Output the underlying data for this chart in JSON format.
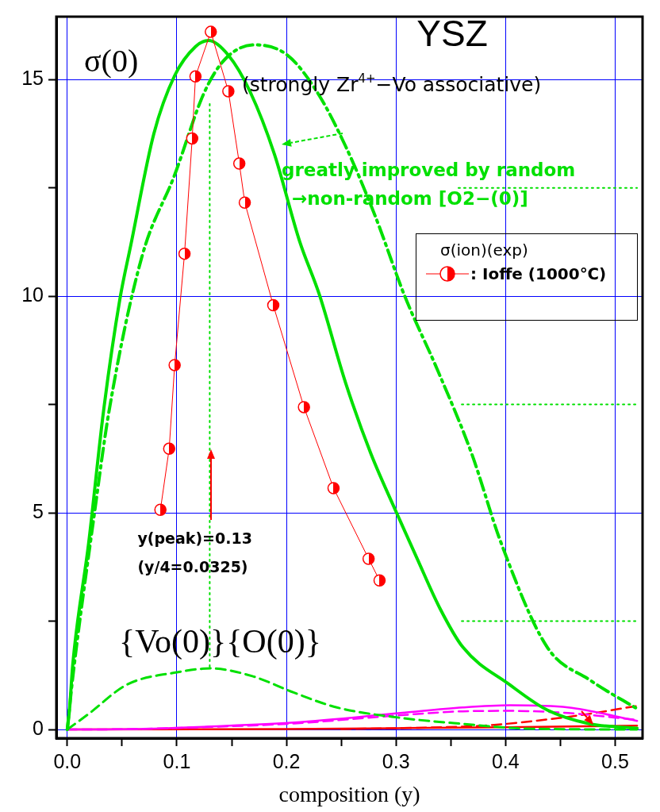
{
  "chart_data": {
    "type": "line",
    "xlabel": "composition (y)",
    "xlim": [
      -0.01,
      0.525
    ],
    "xticks": [
      {
        "value": 0,
        "label": "0.0"
      },
      {
        "value": 0.05,
        "label": null
      },
      0.1,
      {
        "value": 0.15,
        "label": null
      },
      0.2,
      {
        "value": 0.25,
        "label": null
      },
      0.3,
      {
        "value": 0.35,
        "label": null
      },
      0.4,
      {
        "value": 0.45,
        "label": null
      },
      0.5
    ],
    "ylim": [
      -0.2,
      16.45
    ],
    "yticks": [
      0,
      {
        "value": 2.5,
        "label": null
      },
      5,
      {
        "value": 7.5,
        "label": null
      },
      10,
      {
        "value": 12.5,
        "label": null
      },
      15
    ],
    "grid": true,
    "legend": "top right",
    "legend_title": "σ(ion)(exp)",
    "annotations": [
      "YSZ",
      "σ(0)",
      "(strongly Zr$^{4+}$−Vo associative)",
      "greatly improved by random\n→non-random [O2−(0)]",
      {
        "text": "y(peak)=0.13\n(y/4=0.0325)",
        "x": 0.13,
        "y": 6.37
      },
      "{Vo(0)}{O(0)}"
    ],
    "series": [
      {
        "name": ": Ioffe (1000℃)",
        "color": "#ff0000",
        "marker": "circle",
        "line_style": "solid",
        "x": [
          0.085,
          0.093,
          0.098,
          0.107,
          0.114,
          0.117,
          0.131,
          0.147,
          0.157,
          0.162,
          0.188,
          0.216,
          0.243,
          0.275,
          0.285
        ],
        "values": [
          5.07,
          6.48,
          8.41,
          10.98,
          13.64,
          15.07,
          16.1,
          14.73,
          13.06,
          12.16,
          9.79,
          7.44,
          5.57,
          3.94,
          3.44
        ]
      },
      {
        "color": "#00e000",
        "marker": "none",
        "line_style": "solid",
        "x": [
          0,
          0.002,
          0.005,
          0.0195,
          0.033,
          0.048,
          0.058,
          0.079,
          0.098,
          0.117,
          0.129,
          0.147,
          0.167,
          0.189,
          0.212,
          0.23,
          0.254,
          0.277,
          0.3,
          0.319,
          0.34,
          0.361,
          0.404,
          0.438,
          0.477,
          0.52
        ],
        "values": [
          0,
          0.45,
          1.5,
          4.3,
          7.33,
          9.93,
          11.18,
          13.75,
          15.09,
          15.76,
          15.9,
          15.56,
          14.71,
          13.28,
          11.27,
          10.04,
          8.0,
          6.37,
          5.03,
          3.96,
          2.8,
          1.9,
          1.03,
          0.45,
          0.13,
          0.03
        ]
      },
      {
        "color": "#00e000",
        "marker": "none",
        "line_style": "dashdot",
        "x": [
          0,
          0.005,
          0.025,
          0.038,
          0.068,
          0.098,
          0.125,
          0.144,
          0.171,
          0.201,
          0.228,
          0.254,
          0.281,
          0.308,
          0.338,
          0.369,
          0.396,
          0.438,
          0.477,
          0.522
        ],
        "values": [
          0,
          1.2,
          5.03,
          7.33,
          10.9,
          12.8,
          14.7,
          15.47,
          15.8,
          15.56,
          14.71,
          13.46,
          11.85,
          10.0,
          8.29,
          6.37,
          4.3,
          1.9,
          1.14,
          0.45
        ]
      },
      {
        "color": "#00e000",
        "marker": "none",
        "line_style": "dashed",
        "x": [
          0,
          0.02,
          0.054,
          0.1,
          0.131,
          0.169,
          0.207,
          0.246,
          0.304,
          0.361,
          0.419,
          0.52
        ],
        "values": [
          0,
          0.37,
          1.03,
          1.32,
          1.41,
          1.23,
          0.85,
          0.51,
          0.27,
          0.13,
          0.02,
          0
        ]
      },
      {
        "color": "#ff00ff",
        "marker": "none",
        "line_style": "solid",
        "x": [
          0,
          0.06,
          0.131,
          0.207,
          0.304,
          0.361,
          0.404,
          0.457,
          0.52
        ],
        "values": [
          0,
          0.01,
          0.07,
          0.16,
          0.38,
          0.51,
          0.56,
          0.51,
          0.2
        ]
      },
      {
        "color": "#ff00ff",
        "marker": "none",
        "line_style": "dashed",
        "x": [
          0,
          0.06,
          0.131,
          0.207,
          0.304,
          0.361,
          0.404,
          0.457,
          0.52
        ],
        "values": [
          0,
          0.01,
          0.06,
          0.14,
          0.33,
          0.42,
          0.43,
          0.38,
          0.22
        ]
      },
      {
        "color": "#ff0000",
        "marker": "none",
        "line_style": "dashed",
        "x": [
          0.25,
          0.32,
          0.38,
          0.42,
          0.468,
          0.519
        ],
        "values": [
          0.01,
          0.04,
          0.09,
          0.18,
          0.33,
          0.54
        ]
      },
      {
        "color": "#ff0000",
        "marker": "none",
        "line_style": "solid",
        "x": [
          0,
          0.2,
          0.3,
          0.4,
          0.52
        ],
        "values": [
          0,
          0.01,
          0.03,
          0.05,
          0.09
        ]
      },
      {
        "color": "#00e000",
        "marker": "none",
        "line_style": "dotted",
        "x": [
          0.13,
          0.13
        ],
        "values": [
          1.45,
          14.5
        ]
      },
      {
        "color": "#00e000",
        "marker": "none",
        "line_style": "dotted",
        "x": [
          0.357,
          0.52
        ],
        "values": [
          12.5,
          12.5
        ]
      },
      {
        "color": "#00e000",
        "marker": "none",
        "line_style": "dotted",
        "x": [
          0.36,
          0.52
        ],
        "values": [
          7.5,
          7.5
        ]
      },
      {
        "color": "#00e000",
        "marker": "none",
        "line_style": "dotted",
        "x": [
          0.36,
          0.52
        ],
        "values": [
          2.5,
          2.5
        ]
      }
    ]
  }
}
